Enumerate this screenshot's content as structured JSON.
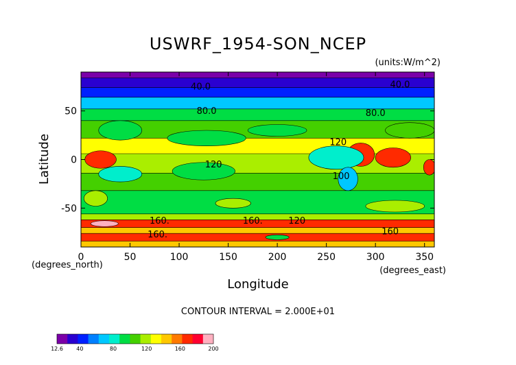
{
  "chart_data": {
    "type": "heatmap",
    "title": "USWRF_1954-SON_NCEP",
    "units_label": "(units:W/m^2)",
    "xlabel": "Longitude",
    "ylabel": "Latitude",
    "x_unit_note": "(degrees_east)",
    "y_unit_note": "(degrees_north)",
    "xlim": [
      0,
      360
    ],
    "ylim": [
      -90,
      90
    ],
    "x_ticks": [
      0,
      50,
      100,
      150,
      200,
      250,
      300,
      350
    ],
    "y_ticks": [
      -50,
      0,
      50
    ],
    "contour_interval_text": "CONTOUR INTERVAL = 2.000E+01",
    "contour_labels": [
      {
        "text": "40.0",
        "lon": 122,
        "lat": 72
      },
      {
        "text": "40.0",
        "lon": 325,
        "lat": 74
      },
      {
        "text": "80.0",
        "lon": 128,
        "lat": 47
      },
      {
        "text": "80.0",
        "lon": 300,
        "lat": 45
      },
      {
        "text": "120",
        "lon": 262,
        "lat": 15
      },
      {
        "text": "120",
        "lon": 135,
        "lat": -8
      },
      {
        "text": "100",
        "lon": 265,
        "lat": -20
      },
      {
        "text": "160.",
        "lon": 80,
        "lat": -66
      },
      {
        "text": "160.",
        "lon": 175,
        "lat": -66
      },
      {
        "text": "120",
        "lon": 220,
        "lat": -66
      },
      {
        "text": "160.",
        "lon": 78,
        "lat": -80
      },
      {
        "text": "160",
        "lon": 315,
        "lat": -77
      }
    ],
    "colorbar": {
      "min": 12.6,
      "max": 200,
      "tick_labels": [
        "12.6",
        "40",
        "80",
        "120",
        "160",
        "200"
      ],
      "tick_values": [
        12.6,
        40,
        80,
        120,
        160,
        200
      ],
      "colors": [
        "#7b00a8",
        "#2a00d0",
        "#0020ff",
        "#0080ff",
        "#00c8ff",
        "#00eecc",
        "#00dd44",
        "#44d000",
        "#aaee00",
        "#ffff00",
        "#ffc800",
        "#ff7a00",
        "#ff2a00",
        "#ff0030",
        "#ffb0c0"
      ]
    },
    "lat_bands": [
      {
        "lat_from": 90,
        "lat_to": 84,
        "value": 15
      },
      {
        "lat_from": 84,
        "lat_to": 74,
        "value": 30
      },
      {
        "lat_from": 74,
        "lat_to": 64,
        "value": 45
      },
      {
        "lat_from": 64,
        "lat_to": 52,
        "value": 68
      },
      {
        "lat_from": 52,
        "lat_to": 40,
        "value": 92
      },
      {
        "lat_from": 40,
        "lat_to": 22,
        "value": 110
      },
      {
        "lat_from": 22,
        "lat_to": 6,
        "value": 128
      },
      {
        "lat_from": 6,
        "lat_to": -14,
        "value": 114
      },
      {
        "lat_from": -14,
        "lat_to": -32,
        "value": 104
      },
      {
        "lat_from": -32,
        "lat_to": -56,
        "value": 96
      },
      {
        "lat_from": -56,
        "lat_to": -62,
        "value": 124
      },
      {
        "lat_from": -62,
        "lat_to": -70,
        "value": 174
      },
      {
        "lat_from": -70,
        "lat_to": -76,
        "value": 150
      },
      {
        "lat_from": -76,
        "lat_to": -84,
        "value": 170
      },
      {
        "lat_from": -84,
        "lat_to": -90,
        "value": 142
      }
    ],
    "patches": [
      {
        "lon": 20,
        "lat": 0,
        "rlon": 16,
        "rlat": 9,
        "value": 165
      },
      {
        "lon": 285,
        "lat": 5,
        "rlon": 14,
        "rlat": 12,
        "value": 170
      },
      {
        "lon": 318,
        "lat": 2,
        "rlon": 18,
        "rlat": 10,
        "value": 168
      },
      {
        "lon": 355,
        "lat": -8,
        "rlon": 6,
        "rlat": 8,
        "value": 165
      },
      {
        "lon": 40,
        "lat": -15,
        "rlon": 22,
        "rlat": 8,
        "value": 86
      },
      {
        "lon": 125,
        "lat": -12,
        "rlon": 32,
        "rlat": 9,
        "value": 88
      },
      {
        "lon": 260,
        "lat": 2,
        "rlon": 28,
        "rlat": 12,
        "value": 86
      },
      {
        "lon": 272,
        "lat": -20,
        "rlon": 10,
        "rlat": 12,
        "value": 72
      },
      {
        "lon": 128,
        "lat": 22,
        "rlon": 40,
        "rlat": 8,
        "value": 92
      },
      {
        "lon": 40,
        "lat": 30,
        "rlon": 22,
        "rlat": 10,
        "value": 92
      },
      {
        "lon": 200,
        "lat": 30,
        "rlon": 30,
        "rlat": 6,
        "value": 96
      },
      {
        "lon": 335,
        "lat": 30,
        "rlon": 25,
        "rlat": 8,
        "value": 104
      },
      {
        "lon": 15,
        "lat": -40,
        "rlon": 12,
        "rlat": 8,
        "value": 118
      },
      {
        "lon": 320,
        "lat": -48,
        "rlon": 30,
        "rlat": 6,
        "value": 116
      },
      {
        "lon": 155,
        "lat": -45,
        "rlon": 18,
        "rlat": 5,
        "value": 116
      },
      {
        "lon": 200,
        "lat": -80,
        "rlon": 12,
        "rlat": 2.5,
        "value": 100
      },
      {
        "lon": 24,
        "lat": -66,
        "rlon": 14,
        "rlat": 3,
        "value": 198
      }
    ]
  }
}
